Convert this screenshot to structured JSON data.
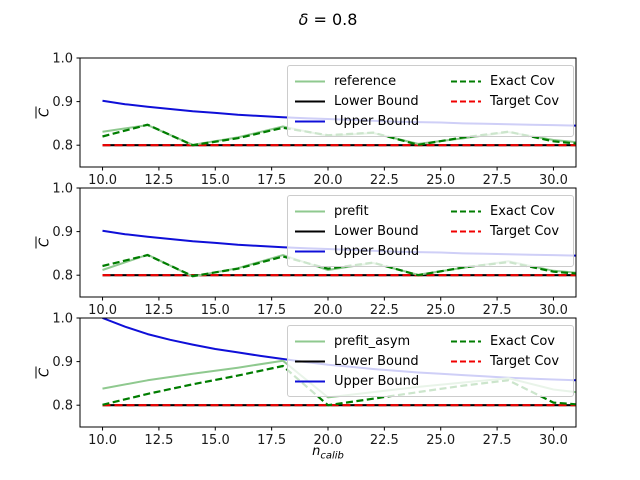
{
  "suptitle": {
    "symbol": "δ",
    "rest": " = 0.8"
  },
  "xlabel": {
    "main": "n",
    "sub": "calib"
  },
  "ylabel": "C",
  "colors": {
    "reference_green": "#8fc98f",
    "exact_green": "#007d00",
    "upper_blue": "#0f0fd8",
    "target_red": "#f00000",
    "lower_black": "#000000",
    "legend_border": "#cccccc"
  },
  "chart_data": [
    {
      "type": "line",
      "xlim": [
        9,
        31
      ],
      "ylim": [
        0.75,
        1.0
      ],
      "xticks": [
        10,
        12.5,
        15,
        17.5,
        20,
        22.5,
        25,
        27.5,
        30
      ],
      "xtick_labels": [
        "10.0",
        "12.5",
        "15.0",
        "17.5",
        "20.0",
        "22.5",
        "25.0",
        "27.5",
        "30.0"
      ],
      "yticks": [
        1.0,
        0.9,
        0.8
      ],
      "ytick_labels": [
        "1.0",
        "0.9",
        "0.8"
      ],
      "series": [
        {
          "name": "Lower Bound",
          "color": "#000000",
          "dash": null,
          "width": 2.2,
          "x": [
            10,
            31
          ],
          "y": [
            0.8,
            0.8
          ]
        },
        {
          "name": "Target Cov",
          "color": "#f00000",
          "dash": "8 4",
          "width": 2.2,
          "x": [
            10,
            31
          ],
          "y": [
            0.8,
            0.8
          ]
        },
        {
          "name": "Upper Bound",
          "color": "#0f0fd8",
          "dash": null,
          "width": 2,
          "x": [
            10,
            11,
            12,
            13,
            14,
            15,
            16,
            17,
            18,
            19,
            20,
            21,
            22,
            23,
            24,
            25,
            26,
            27,
            28,
            29,
            30,
            31
          ],
          "y": [
            0.902,
            0.894,
            0.888,
            0.883,
            0.878,
            0.874,
            0.87,
            0.867,
            0.864,
            0.862,
            0.86,
            0.858,
            0.856,
            0.854,
            0.853,
            0.852,
            0.85,
            0.849,
            0.848,
            0.847,
            0.846,
            0.845
          ]
        },
        {
          "name": "reference",
          "color": "#8fc98f",
          "dash": null,
          "width": 2,
          "x": [
            10,
            12,
            14,
            16,
            18,
            20,
            22,
            24,
            26,
            28,
            30,
            31
          ],
          "y": [
            0.831,
            0.846,
            0.801,
            0.818,
            0.843,
            0.821,
            0.828,
            0.803,
            0.816,
            0.83,
            0.812,
            0.807
          ]
        },
        {
          "name": "Exact Cov",
          "color": "#007d00",
          "dash": "7 3.5",
          "width": 2.2,
          "x": [
            10,
            12,
            14,
            16,
            18,
            20,
            22,
            24,
            26,
            28,
            30,
            31
          ],
          "y": [
            0.82,
            0.847,
            0.8,
            0.816,
            0.84,
            0.823,
            0.829,
            0.801,
            0.818,
            0.831,
            0.809,
            0.804
          ]
        }
      ],
      "legend": {
        "col1": [
          {
            "label": "reference",
            "color": "#8fc98f",
            "dash": null
          },
          {
            "label": "Lower Bound",
            "color": "#000000",
            "dash": null
          },
          {
            "label": "Upper Bound",
            "color": "#0f0fd8",
            "dash": null
          }
        ],
        "col2": [
          {
            "label": "Exact Cov",
            "color": "#007d00",
            "dash": "6 3"
          },
          {
            "label": "Target Cov",
            "color": "#f00000",
            "dash": "6 3"
          }
        ]
      }
    },
    {
      "type": "line",
      "xlim": [
        9,
        31
      ],
      "ylim": [
        0.75,
        1.0
      ],
      "xticks": [
        10,
        12.5,
        15,
        17.5,
        20,
        22.5,
        25,
        27.5,
        30
      ],
      "xtick_labels": [
        "10.0",
        "12.5",
        "15.0",
        "17.5",
        "20.0",
        "22.5",
        "25.0",
        "27.5",
        "30.0"
      ],
      "yticks": [
        1.0,
        0.9,
        0.8
      ],
      "ytick_labels": [
        "1.0",
        "0.9",
        "0.8"
      ],
      "series": [
        {
          "name": "Lower Bound",
          "color": "#000000",
          "dash": null,
          "width": 2.2,
          "x": [
            10,
            31
          ],
          "y": [
            0.8,
            0.8
          ]
        },
        {
          "name": "Target Cov",
          "color": "#f00000",
          "dash": "8 4",
          "width": 2.2,
          "x": [
            10,
            31
          ],
          "y": [
            0.8,
            0.8
          ]
        },
        {
          "name": "Upper Bound",
          "color": "#0f0fd8",
          "dash": null,
          "width": 2,
          "x": [
            10,
            11,
            12,
            13,
            14,
            15,
            16,
            17,
            18,
            19,
            20,
            21,
            22,
            23,
            24,
            25,
            26,
            27,
            28,
            29,
            30,
            31
          ],
          "y": [
            0.902,
            0.894,
            0.888,
            0.883,
            0.878,
            0.874,
            0.87,
            0.867,
            0.864,
            0.862,
            0.86,
            0.858,
            0.856,
            0.854,
            0.853,
            0.852,
            0.85,
            0.849,
            0.848,
            0.847,
            0.846,
            0.845
          ]
        },
        {
          "name": "prefit",
          "color": "#8fc98f",
          "dash": null,
          "width": 2,
          "x": [
            10,
            12,
            14,
            16,
            18,
            20,
            22,
            24,
            26,
            28,
            30,
            31
          ],
          "y": [
            0.812,
            0.847,
            0.797,
            0.816,
            0.846,
            0.812,
            0.828,
            0.801,
            0.817,
            0.832,
            0.81,
            0.806
          ]
        },
        {
          "name": "Exact Cov",
          "color": "#007d00",
          "dash": "7 3.5",
          "width": 2.2,
          "x": [
            10,
            12,
            14,
            16,
            18,
            20,
            22,
            24,
            26,
            28,
            30,
            31
          ],
          "y": [
            0.821,
            0.846,
            0.798,
            0.815,
            0.843,
            0.815,
            0.829,
            0.8,
            0.818,
            0.83,
            0.808,
            0.804
          ]
        }
      ],
      "legend": {
        "col1": [
          {
            "label": "prefit",
            "color": "#8fc98f",
            "dash": null
          },
          {
            "label": "Lower Bound",
            "color": "#000000",
            "dash": null
          },
          {
            "label": "Upper Bound",
            "color": "#0f0fd8",
            "dash": null
          }
        ],
        "col2": [
          {
            "label": "Exact Cov",
            "color": "#007d00",
            "dash": "6 3"
          },
          {
            "label": "Target Cov",
            "color": "#f00000",
            "dash": "6 3"
          }
        ]
      }
    },
    {
      "type": "line",
      "xlim": [
        9,
        31
      ],
      "ylim": [
        0.75,
        1.0
      ],
      "xticks": [
        10,
        12.5,
        15,
        17.5,
        20,
        22.5,
        25,
        27.5,
        30
      ],
      "xtick_labels": [
        "10.0",
        "12.5",
        "15.0",
        "17.5",
        "20.0",
        "22.5",
        "25.0",
        "27.5",
        "30.0"
      ],
      "yticks": [
        1.0,
        0.9,
        0.8
      ],
      "ytick_labels": [
        "1.0",
        "0.9",
        "0.8"
      ],
      "series": [
        {
          "name": "Lower Bound",
          "color": "#000000",
          "dash": null,
          "width": 2.2,
          "x": [
            10,
            31
          ],
          "y": [
            0.8,
            0.8
          ]
        },
        {
          "name": "Target Cov",
          "color": "#f00000",
          "dash": "8 4",
          "width": 2.2,
          "x": [
            10,
            31
          ],
          "y": [
            0.8,
            0.8
          ]
        },
        {
          "name": "Upper Bound",
          "color": "#0f0fd8",
          "dash": null,
          "width": 2,
          "x": [
            10,
            11,
            12,
            13,
            14,
            15,
            16,
            17,
            18,
            19,
            20,
            21,
            22,
            23,
            24,
            25,
            26,
            27,
            28,
            29,
            30,
            31
          ],
          "y": [
            1.0,
            0.98,
            0.963,
            0.95,
            0.939,
            0.929,
            0.921,
            0.913,
            0.906,
            0.899,
            0.893,
            0.888,
            0.883,
            0.879,
            0.875,
            0.872,
            0.869,
            0.866,
            0.863,
            0.861,
            0.859,
            0.857
          ]
        },
        {
          "name": "prefit_asym",
          "color": "#8fc98f",
          "dash": null,
          "width": 2,
          "x": [
            10,
            12,
            14,
            16,
            18,
            20,
            22,
            24,
            26,
            28,
            30,
            31
          ],
          "y": [
            0.838,
            0.857,
            0.872,
            0.886,
            0.902,
            0.818,
            0.83,
            0.842,
            0.852,
            0.862,
            0.836,
            0.83
          ]
        },
        {
          "name": "Exact Cov",
          "color": "#007d00",
          "dash": "7 3.5",
          "width": 2.2,
          "x": [
            10,
            12,
            14,
            16,
            18,
            20,
            22,
            24,
            26,
            28,
            30,
            31
          ],
          "y": [
            0.801,
            0.826,
            0.848,
            0.868,
            0.89,
            0.8,
            0.815,
            0.83,
            0.845,
            0.857,
            0.806,
            0.802
          ]
        }
      ],
      "legend": {
        "col1": [
          {
            "label": "prefit_asym",
            "color": "#8fc98f",
            "dash": null
          },
          {
            "label": "Lower Bound",
            "color": "#000000",
            "dash": null
          },
          {
            "label": "Upper Bound",
            "color": "#0f0fd8",
            "dash": null
          }
        ],
        "col2": [
          {
            "label": "Exact Cov",
            "color": "#007d00",
            "dash": "6 3"
          },
          {
            "label": "Target Cov",
            "color": "#f00000",
            "dash": "6 3"
          }
        ]
      }
    }
  ]
}
